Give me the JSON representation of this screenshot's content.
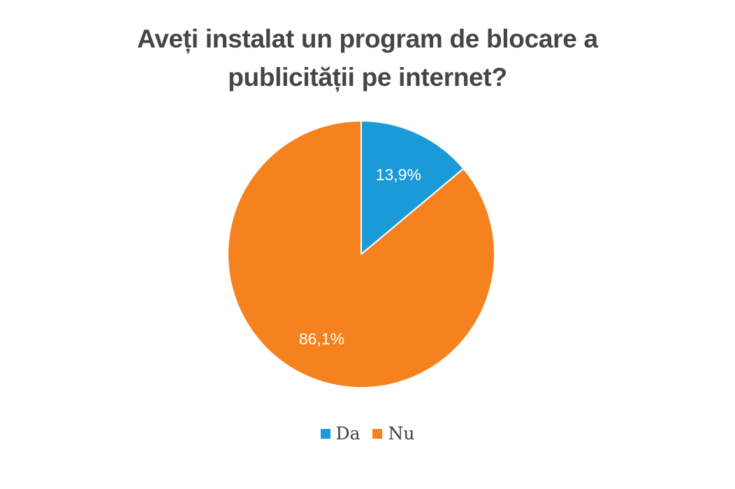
{
  "chart_data": {
    "type": "pie",
    "title_lines": [
      "Aveți instalat un program de blocare a",
      "publicității pe internet?"
    ],
    "categories": [
      "Da",
      "Nu"
    ],
    "values": [
      13.9,
      86.1
    ],
    "value_labels": [
      "13,9%",
      "86,1%"
    ],
    "colors": [
      "#1a9ad6",
      "#f5821f"
    ],
    "legend_position": "bottom",
    "start_angle": "12 o'clock",
    "direction": "clockwise"
  }
}
